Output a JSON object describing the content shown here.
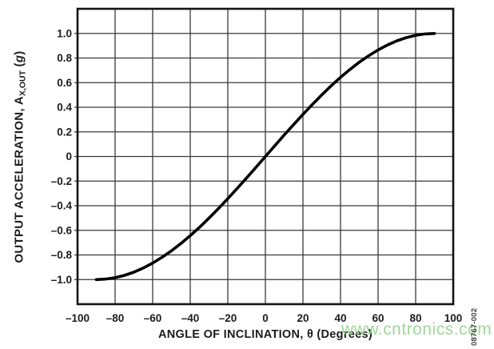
{
  "figure": {
    "watermark": "www.cntronics.com",
    "figure_number": "08767-002",
    "colors": {
      "background": "#ffffff",
      "curve": "#000000",
      "grid": "#3a3a3a",
      "frame": "#141414",
      "label": "#1c1c1c",
      "watermark": "#8fd189"
    },
    "x_axis": {
      "title": "ANGLE OF INCLINATION, θ (Degrees)",
      "grid_values": [
        -80,
        -60,
        -40,
        -20,
        0,
        20,
        40,
        60,
        80
      ],
      "tick_values": [
        -100,
        -80,
        -60,
        -40,
        -20,
        0,
        20,
        40,
        60,
        80,
        100
      ],
      "tick_labels": [
        "–100",
        "–80",
        "–60",
        "–40",
        "–20",
        "0",
        "20",
        "40",
        "60",
        "80",
        "100"
      ]
    },
    "y_axis": {
      "title_prefix": "OUTPUT ACCELERATION, A",
      "title_sub": "X,OUT",
      "title_open": " (",
      "title_g": "g",
      "title_close": ")",
      "grid_values": [
        -1.0,
        -0.8,
        -0.6,
        -0.4,
        -0.2,
        0,
        0.2,
        0.4,
        0.6,
        0.8,
        1.0
      ],
      "tick_values": [
        1.0,
        0.8,
        0.6,
        0.4,
        0.2,
        0,
        -0.2,
        -0.4,
        -0.6,
        -0.8,
        -1.0
      ],
      "tick_labels": [
        "1.0",
        "0.8",
        "0.6",
        "0.4",
        "0.2",
        "0",
        "–0.2",
        "–0.4",
        "–0.6",
        "–0.8",
        "–1.0"
      ]
    }
  },
  "chart_data": {
    "type": "line",
    "title": "",
    "xlabel": "ANGLE OF INCLINATION, θ (Degrees)",
    "ylabel": "OUTPUT ACCELERATION, AX,OUT (g)",
    "xlim": [
      -100,
      100
    ],
    "ylim": [
      -1.2,
      1.2
    ],
    "x_tick_step": 20,
    "y_tick_step": 0.2,
    "grid": true,
    "legend": false,
    "x": [
      -90,
      -85,
      -80,
      -75,
      -70,
      -65,
      -60,
      -55,
      -50,
      -45,
      -40,
      -35,
      -30,
      -25,
      -20,
      -15,
      -10,
      -5,
      0,
      5,
      10,
      15,
      20,
      25,
      30,
      35,
      40,
      45,
      50,
      55,
      60,
      65,
      70,
      75,
      80,
      85,
      90
    ],
    "y": [
      -1.0,
      -0.996,
      -0.985,
      -0.966,
      -0.94,
      -0.906,
      -0.866,
      -0.819,
      -0.766,
      -0.707,
      -0.643,
      -0.574,
      -0.5,
      -0.423,
      -0.342,
      -0.259,
      -0.174,
      -0.087,
      0.0,
      0.087,
      0.174,
      0.259,
      0.342,
      0.423,
      0.5,
      0.574,
      0.643,
      0.707,
      0.766,
      0.819,
      0.866,
      0.906,
      0.94,
      0.966,
      0.985,
      0.996,
      1.0
    ]
  }
}
